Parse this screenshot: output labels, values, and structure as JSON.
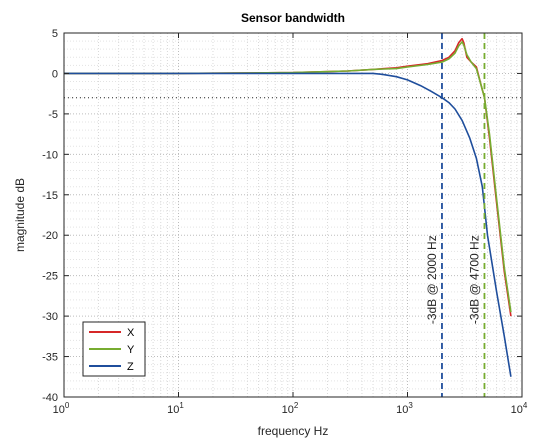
{
  "chart_data": {
    "type": "line",
    "title": "Sensor bandwidth",
    "xlabel": "frequency Hz",
    "ylabel": "magnitude dB",
    "xscale": "log",
    "xlim": [
      1,
      10000
    ],
    "ylim": [
      -40,
      5
    ],
    "x_tick_labels": [
      {
        "base": "10",
        "exp": "0"
      },
      {
        "base": "10",
        "exp": "1"
      },
      {
        "base": "10",
        "exp": "2"
      },
      {
        "base": "10",
        "exp": "3"
      },
      {
        "base": "10",
        "exp": "4"
      }
    ],
    "y_ticks": [
      5,
      0,
      -5,
      -10,
      -15,
      -20,
      -25,
      -30,
      -35,
      -40
    ],
    "y_tick_labels": [
      "5",
      "0",
      "-5",
      "-10",
      "-15",
      "-20",
      "-25",
      "-30",
      "-35",
      "-40"
    ],
    "grid": "major and minor, dotted",
    "legend_position": "bottom-left",
    "series": [
      {
        "name": "X",
        "color": "#d62728",
        "x": [
          1,
          10,
          100,
          300,
          500,
          800,
          1000,
          1500,
          2000,
          2300,
          2600,
          2800,
          3000,
          3100,
          3300,
          3600,
          4000,
          4400,
          4700,
          5200,
          6000,
          7000,
          8000
        ],
        "y": [
          0,
          0,
          0.1,
          0.3,
          0.5,
          0.7,
          0.9,
          1.2,
          1.6,
          2.0,
          2.8,
          3.8,
          4.3,
          3.8,
          2.0,
          1.4,
          0.8,
          -1.5,
          -3.0,
          -8.0,
          -16.0,
          -24.5,
          -30.0
        ]
      },
      {
        "name": "Y",
        "color": "#77ac30",
        "x": [
          1,
          10,
          100,
          300,
          500,
          800,
          1000,
          1500,
          2000,
          2300,
          2600,
          2800,
          3000,
          3100,
          3300,
          3600,
          4000,
          4400,
          4700,
          5200,
          6000,
          7000,
          8000
        ],
        "y": [
          0,
          0,
          0.1,
          0.3,
          0.5,
          0.6,
          0.8,
          1.1,
          1.4,
          1.8,
          2.5,
          3.4,
          3.9,
          3.5,
          2.3,
          1.4,
          0.6,
          -1.5,
          -3.0,
          -7.5,
          -15.5,
          -24.0,
          -29.5
        ]
      },
      {
        "name": "Z",
        "color": "#1f4e9c",
        "x": [
          1,
          10,
          100,
          300,
          500,
          600,
          800,
          1000,
          1300,
          1600,
          2000,
          2300,
          2600,
          3000,
          3500,
          4000,
          4500,
          5000,
          6000,
          7000,
          8000
        ],
        "y": [
          0,
          0,
          0,
          0,
          0,
          -0.1,
          -0.4,
          -0.8,
          -1.5,
          -2.2,
          -3.0,
          -3.6,
          -4.4,
          -5.8,
          -8.0,
          -10.5,
          -14.0,
          -20.0,
          -27.0,
          -32.5,
          -37.5
        ]
      }
    ],
    "markers": [
      {
        "x": 2000,
        "label": "-3dB @ 2000 Hz",
        "color": "#1f4e9c",
        "style": "dashed"
      },
      {
        "x": 4700,
        "label": "-3dB @ 4700 Hz",
        "color": "#77ac30",
        "text_color": "#d62728",
        "style": "dashed"
      }
    ],
    "reference_line": {
      "y": -3,
      "style": "dotted",
      "color": "#262626"
    }
  }
}
